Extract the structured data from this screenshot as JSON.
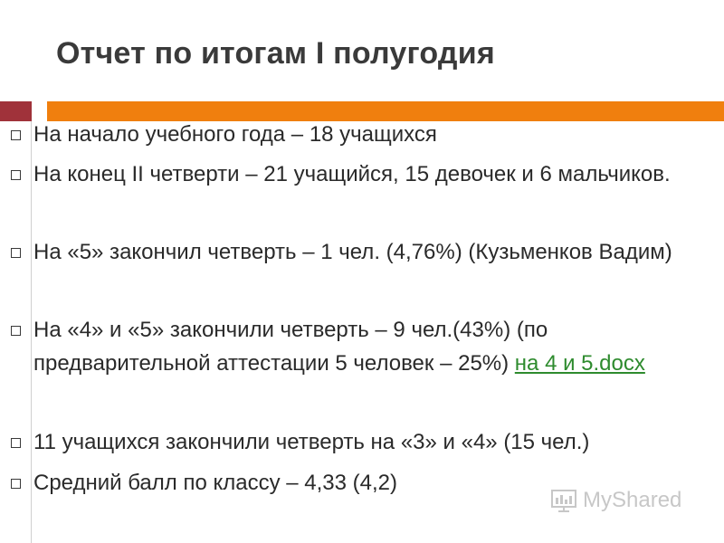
{
  "slide": {
    "title": "Отчет по итогам I полугодия"
  },
  "items": [
    {
      "text": "На начало учебного года – 18 учащихся"
    },
    {
      "text": "На конец II четверти – 21 учащийся, 15 девочек и 6 мальчиков."
    },
    {
      "text": "На «5» закончил четверть – 1 чел. (4,76%) (Кузьменков Вадим)"
    },
    {
      "text": "На «4» и «5» закончили четверть – 9 чел.(43%) (по предварительной аттестации 5 человек – 25%) ",
      "link": "на 4 и 5.docx"
    },
    {
      "text": "11 учащихся закончили четверть на «3» и «4» (15 чел.)"
    },
    {
      "text": "Средний балл по классу – 4,33 (4,2)"
    }
  ],
  "watermark": {
    "text": "MyShared",
    "icon": "myshared-logo-icon"
  },
  "colors": {
    "accent_dark": "#a0323a",
    "accent_orange": "#f07f0e",
    "link": "#2e8b2e"
  }
}
